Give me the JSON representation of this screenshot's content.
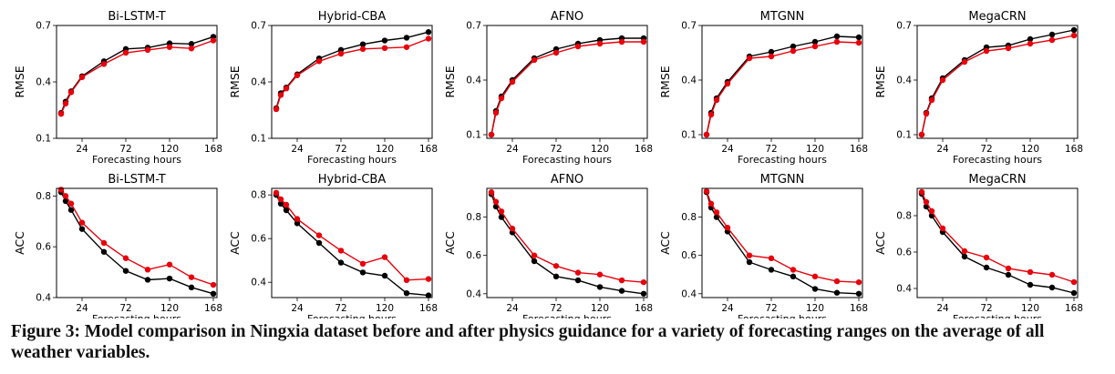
{
  "caption": "Figure 3: Model comparison in Ningxia dataset before and after physics guidance for a variety of forecasting ranges on the average of all weather variables.",
  "colors": {
    "before": "#000000",
    "after": "#e8000b"
  },
  "chart_data": [
    {
      "type": "line",
      "title": "Bi-LSTM-T",
      "xlabel": "Forecasting hours",
      "ylabel": "RMSE",
      "ylim": [
        0.1,
        0.7
      ],
      "yticks": [
        0.1,
        0.4,
        0.7
      ],
      "xticks": [
        24,
        72,
        120,
        168
      ],
      "x": [
        1,
        6,
        12,
        24,
        48,
        72,
        96,
        120,
        144,
        168
      ],
      "series": [
        {
          "values": [
            0.235,
            0.295,
            0.35,
            0.43,
            0.51,
            0.575,
            0.582,
            0.605,
            0.602,
            0.64
          ]
        },
        {
          "values": [
            0.23,
            0.285,
            0.345,
            0.425,
            0.495,
            0.555,
            0.57,
            0.585,
            0.578,
            0.62
          ]
        }
      ]
    },
    {
      "type": "line",
      "title": "Hybrid-CBA",
      "xlabel": "Forecasting hours",
      "ylabel": "RMSE",
      "ylim": [
        0.1,
        0.7
      ],
      "yticks": [
        0.1,
        0.4,
        0.7
      ],
      "xticks": [
        24,
        72,
        120,
        168
      ],
      "x": [
        1,
        6,
        12,
        24,
        48,
        72,
        96,
        120,
        144,
        168
      ],
      "series": [
        {
          "values": [
            0.26,
            0.34,
            0.37,
            0.44,
            0.525,
            0.57,
            0.6,
            0.62,
            0.635,
            0.665
          ]
        },
        {
          "values": [
            0.255,
            0.33,
            0.365,
            0.435,
            0.51,
            0.55,
            0.575,
            0.58,
            0.585,
            0.63
          ]
        }
      ]
    },
    {
      "type": "line",
      "title": "AFNO",
      "xlabel": "Forecasting hours",
      "ylabel": "RMSE",
      "ylim": [
        0.08,
        0.7
      ],
      "yticks": [
        0.1,
        0.4,
        0.7
      ],
      "xticks": [
        24,
        72,
        120,
        168
      ],
      "x": [
        1,
        6,
        12,
        24,
        48,
        72,
        96,
        120,
        144,
        168
      ],
      "series": [
        {
          "values": [
            0.1,
            0.23,
            0.31,
            0.4,
            0.52,
            0.57,
            0.6,
            0.62,
            0.63,
            0.63
          ]
        },
        {
          "values": [
            0.1,
            0.22,
            0.3,
            0.39,
            0.51,
            0.55,
            0.585,
            0.6,
            0.61,
            0.61
          ]
        }
      ]
    },
    {
      "type": "line",
      "title": "MTGNN",
      "xlabel": "Forecasting hours",
      "ylabel": "RMSE",
      "ylim": [
        0.08,
        0.7
      ],
      "yticks": [
        0.1,
        0.4,
        0.7
      ],
      "xticks": [
        24,
        72,
        120,
        168
      ],
      "x": [
        1,
        6,
        12,
        24,
        48,
        72,
        96,
        120,
        144,
        168
      ],
      "series": [
        {
          "values": [
            0.1,
            0.22,
            0.3,
            0.39,
            0.53,
            0.555,
            0.585,
            0.61,
            0.64,
            0.635
          ]
        },
        {
          "values": [
            0.1,
            0.21,
            0.29,
            0.38,
            0.52,
            0.53,
            0.56,
            0.585,
            0.61,
            0.605
          ]
        }
      ]
    },
    {
      "type": "line",
      "title": "MegaCRN",
      "xlabel": "Forecasting hours",
      "ylabel": "RMSE",
      "ylim": [
        0.08,
        0.7
      ],
      "yticks": [
        0.1,
        0.4,
        0.7
      ],
      "xticks": [
        24,
        72,
        120,
        168
      ],
      "x": [
        1,
        6,
        12,
        24,
        48,
        72,
        96,
        120,
        144,
        168
      ],
      "series": [
        {
          "values": [
            0.1,
            0.22,
            0.3,
            0.41,
            0.51,
            0.58,
            0.59,
            0.625,
            0.65,
            0.675
          ]
        },
        {
          "values": [
            0.1,
            0.215,
            0.29,
            0.4,
            0.5,
            0.56,
            0.575,
            0.6,
            0.62,
            0.645
          ]
        }
      ]
    },
    {
      "type": "line",
      "title": "Bi-LSTM-T",
      "xlabel": "Forecasting hours",
      "ylabel": "ACC",
      "ylim": [
        0.4,
        0.83
      ],
      "yticks": [
        0.4,
        0.6,
        0.8
      ],
      "xticks": [
        24,
        72,
        120,
        168
      ],
      "x": [
        1,
        6,
        12,
        24,
        48,
        72,
        96,
        120,
        144,
        168
      ],
      "series": [
        {
          "values": [
            0.815,
            0.78,
            0.745,
            0.67,
            0.58,
            0.505,
            0.47,
            0.475,
            0.44,
            0.415
          ]
        },
        {
          "values": [
            0.825,
            0.8,
            0.77,
            0.695,
            0.615,
            0.555,
            0.51,
            0.53,
            0.48,
            0.45
          ]
        }
      ]
    },
    {
      "type": "line",
      "title": "Hybrid-CBA",
      "xlabel": "Forecasting hours",
      "ylabel": "ACC",
      "ylim": [
        0.33,
        0.83
      ],
      "yticks": [
        0.4,
        0.6,
        0.8
      ],
      "xticks": [
        24,
        72,
        120,
        168
      ],
      "x": [
        1,
        6,
        12,
        24,
        48,
        72,
        96,
        120,
        144,
        168
      ],
      "series": [
        {
          "values": [
            0.8,
            0.76,
            0.73,
            0.67,
            0.58,
            0.49,
            0.445,
            0.43,
            0.35,
            0.34
          ]
        },
        {
          "values": [
            0.81,
            0.78,
            0.755,
            0.69,
            0.615,
            0.545,
            0.485,
            0.515,
            0.41,
            0.415
          ]
        }
      ]
    },
    {
      "type": "line",
      "title": "AFNO",
      "xlabel": "Forecasting hours",
      "ylabel": "ACC",
      "ylim": [
        0.38,
        0.95
      ],
      "yticks": [
        0.4,
        0.6,
        0.8
      ],
      "xticks": [
        24,
        72,
        120,
        168
      ],
      "x": [
        1,
        6,
        12,
        24,
        48,
        72,
        96,
        120,
        144,
        168
      ],
      "series": [
        {
          "values": [
            0.92,
            0.855,
            0.8,
            0.72,
            0.57,
            0.49,
            0.47,
            0.435,
            0.415,
            0.4
          ]
        },
        {
          "values": [
            0.93,
            0.88,
            0.83,
            0.74,
            0.6,
            0.545,
            0.51,
            0.5,
            0.47,
            0.46
          ]
        }
      ]
    },
    {
      "type": "line",
      "title": "MTGNN",
      "xlabel": "Forecasting hours",
      "ylabel": "ACC",
      "ylim": [
        0.38,
        0.95
      ],
      "yticks": [
        0.4,
        0.6,
        0.8
      ],
      "xticks": [
        24,
        72,
        120,
        168
      ],
      "x": [
        1,
        6,
        12,
        24,
        48,
        72,
        96,
        120,
        144,
        168
      ],
      "series": [
        {
          "values": [
            0.93,
            0.85,
            0.8,
            0.725,
            0.565,
            0.525,
            0.49,
            0.425,
            0.405,
            0.4
          ]
        },
        {
          "values": [
            0.935,
            0.87,
            0.825,
            0.745,
            0.6,
            0.585,
            0.525,
            0.49,
            0.465,
            0.46
          ]
        }
      ]
    },
    {
      "type": "line",
      "title": "MegaCRN",
      "xlabel": "Forecasting hours",
      "ylabel": "ACC",
      "ylim": [
        0.35,
        0.95
      ],
      "yticks": [
        0.4,
        0.6,
        0.8
      ],
      "xticks": [
        24,
        72,
        120,
        168
      ],
      "x": [
        1,
        6,
        12,
        24,
        48,
        72,
        96,
        120,
        144,
        168
      ],
      "series": [
        {
          "values": [
            0.92,
            0.85,
            0.8,
            0.71,
            0.575,
            0.515,
            0.475,
            0.42,
            0.405,
            0.375
          ]
        },
        {
          "values": [
            0.93,
            0.875,
            0.825,
            0.73,
            0.605,
            0.57,
            0.51,
            0.49,
            0.475,
            0.435
          ]
        }
      ]
    }
  ]
}
